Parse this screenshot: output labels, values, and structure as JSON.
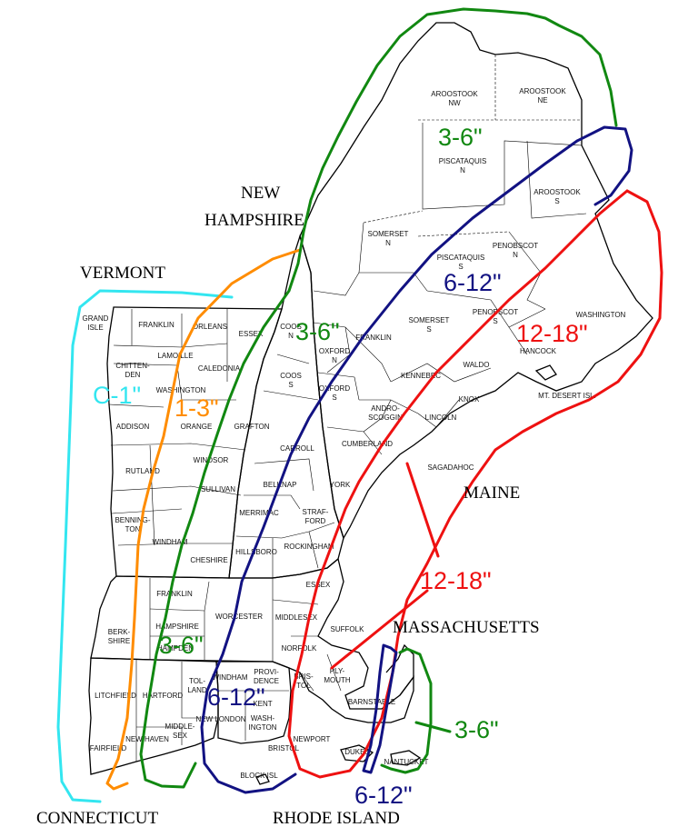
{
  "colors": {
    "cyan": "#33e6f0",
    "orange": "#ff8c00",
    "green": "#118811",
    "navy": "#121282",
    "red": "#ee1111",
    "border": "#000000"
  },
  "states": {
    "vermont": "VERMONT",
    "new_hampshire_1": "NEW",
    "new_hampshire_2": "HAMPSHIRE",
    "maine": "MAINE",
    "massachusetts": "MASSACHUSETTS",
    "connecticut": "CONNECTICUT",
    "rhode_island": "RHODE ISLAND"
  },
  "bands": {
    "c1": "C-1\"",
    "b13": "1-3\"",
    "g36_me": "3-6\"",
    "g36_nh": "3-6\"",
    "g36_ma": "3-6\"",
    "g36_cape": "3-6\"",
    "b612_me": "6-12\"",
    "b612_ct": "6-12\"",
    "b612_cape": "6-12\"",
    "r1218_me": "12-18\"",
    "r1218_ma": "12-18\""
  },
  "counties": {
    "aroostook_nw_1": "AROOSTOOK",
    "aroostook_nw_2": "NW",
    "aroostook_ne_1": "AROOSTOOK",
    "aroostook_ne_2": "NE",
    "piscataquis_n_1": "PISCATAQUIS",
    "piscataquis_n_2": "N",
    "aroostook_s_1": "AROOSTOOK",
    "aroostook_s_2": "S",
    "somerset_n_1": "SOMERSET",
    "somerset_n_2": "N",
    "piscataquis_s_1": "PISCATAQUIS",
    "piscataquis_s_2": "S",
    "penobscot_n_1": "PENOBSCOT",
    "penobscot_n_2": "N",
    "somerset_s_1": "SOMERSET",
    "somerset_s_2": "S",
    "penobscot_s_1": "PENOBSCOT",
    "penobscot_s_2": "S",
    "washington_me": "WASHINGTON",
    "hancock": "HANCOCK",
    "mt_desert": "MT. DESERT ISL.",
    "coos_n_1": "COOS",
    "coos_n_2": "N",
    "oxford_n_1": "OXFORD",
    "oxford_n_2": "N",
    "franklin_me": "FRANKLIN",
    "kennebec": "KENNEBEC",
    "waldo": "WALDO",
    "knox": "KNOX",
    "coos_s_1": "COOS",
    "coos_s_2": "S",
    "oxford_s_1": "OXFORD",
    "oxford_s_2": "S",
    "androscoggin_1": "ANDRO-",
    "androscoggin_2": "SCOGGIN",
    "lincoln": "LINCOLN",
    "cumberland": "CUMBERLAND",
    "sagadahoc": "SAGADAHOC",
    "carroll": "CARROLL",
    "york": "YORK",
    "grand_isle_1": "GRAND",
    "grand_isle_2": "ISLE",
    "franklin_vt": "FRANKLIN",
    "orleans": "ORLEANS",
    "essex_vt": "ESSEX",
    "lamoille": "LAMOILLE",
    "caledonia": "CALEDONIA",
    "chittenden_1": "CHITTEN-",
    "chittenden_2": "DEN",
    "washington_vt": "WASHINGTON",
    "addison": "ADDISON",
    "orange": "ORANGE",
    "grafton": "GRAFTON",
    "windsor": "WINDSOR",
    "rutland": "RUTLAND",
    "sullivan": "SULLIVAN",
    "belknap": "BELKNAP",
    "bennington_1": "BENNING-",
    "bennington_2": "TON",
    "merrimack": "MERRIMAC",
    "strafford_1": "STRAF-",
    "strafford_2": "FORD",
    "windham_vt": "WINDHAM",
    "cheshire": "CHESHIRE",
    "hillsboro": "HILLSBORO",
    "rockingham": "ROCKINGHAM",
    "franklin_ma": "FRANKLIN",
    "essex_ma": "ESSEX",
    "berkshire_1": "BERK-",
    "berkshire_2": "SHIRE",
    "hampshire": "HAMPSHIRE",
    "worcester": "WORCESTER",
    "middlesex_ma": "MIDDLESEX",
    "suffolk": "SUFFOLK",
    "hampden": "HAMPDEN",
    "norfolk": "NORFOLK",
    "litchfield": "LITCHFIELD",
    "hartford": "HARTFORD",
    "tolland_1": "TOL-",
    "tolland_2": "LAND",
    "windham_ct": "WINDHAM",
    "providence_1": "PROVI-",
    "providence_2": "DENCE",
    "bristol_ma_1": "BRIS-",
    "bristol_ma_2": "TOL",
    "plymouth_1": "PLY-",
    "plymouth_2": "MOUTH",
    "barnstable": "BARNSTABLE",
    "kent": "KENT",
    "washington_ri_1": "WASH-",
    "washington_ri_2": "INGTON",
    "new_london": "NEW LONDON",
    "middlesex_ct_1": "MIDDLE-",
    "middlesex_ct_2": "SEX",
    "new_haven": "NEW HAVEN",
    "fairfield": "FAIRFIELD",
    "newport": "NEWPORT",
    "bristol_ri": "BRISTOL",
    "dukes": "DUKES",
    "nantucket": "NANTUCKET",
    "block_isl": "BLOCK ISL"
  }
}
